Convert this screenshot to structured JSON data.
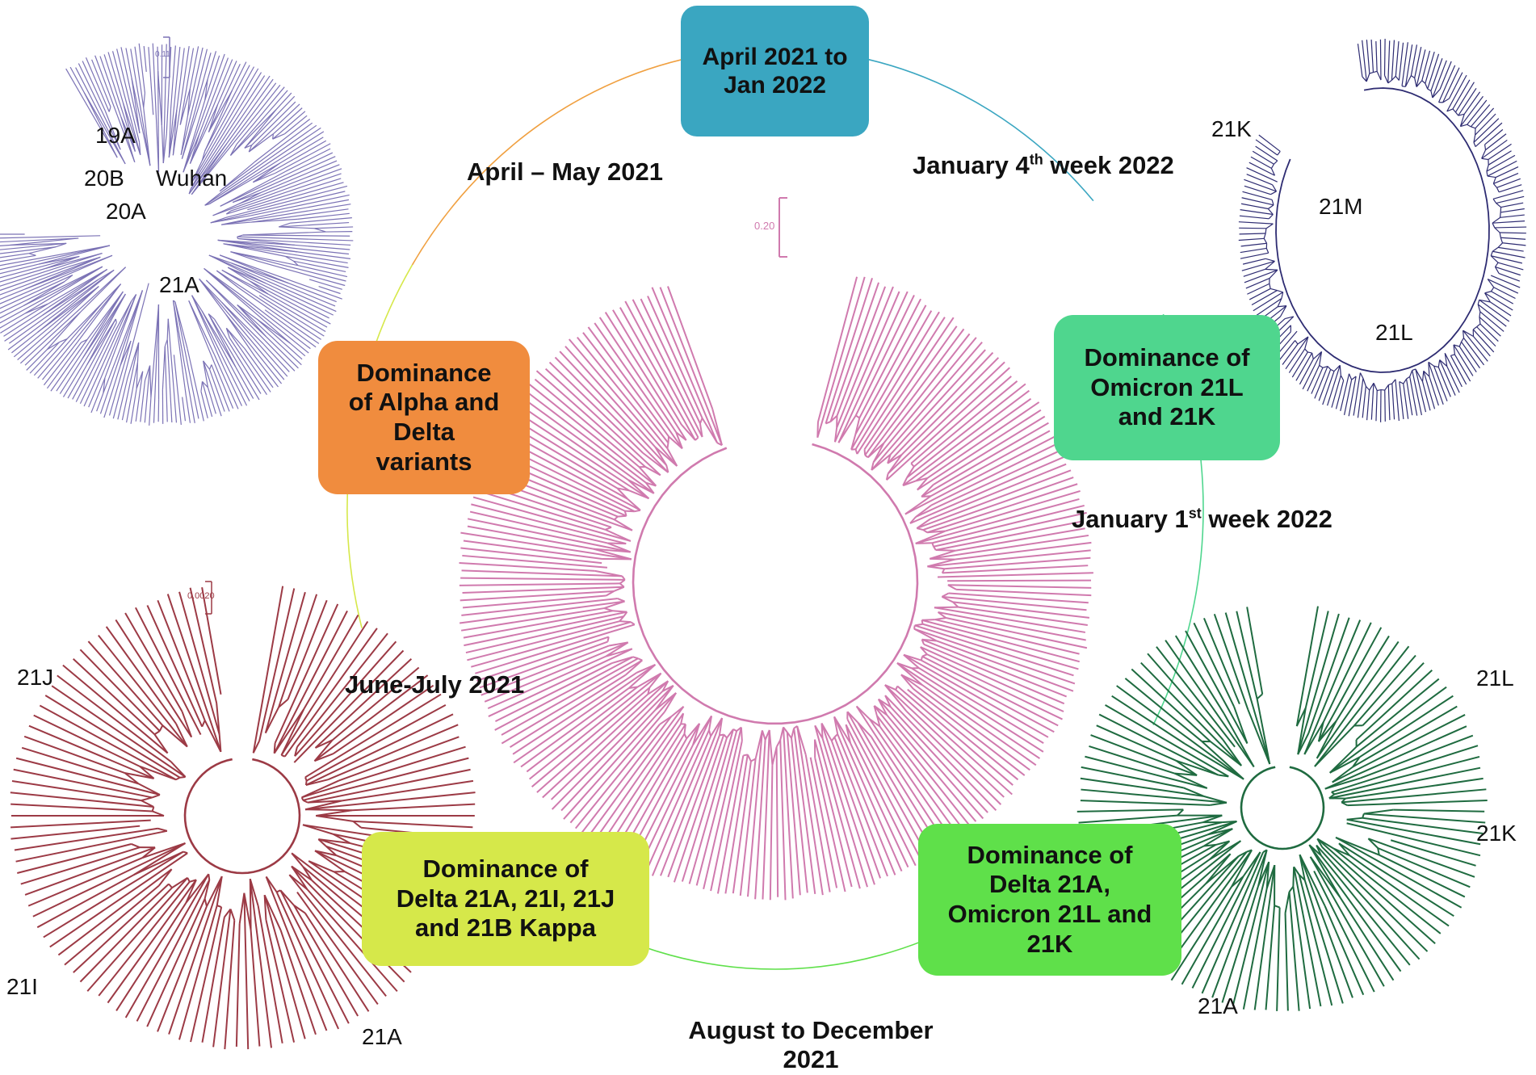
{
  "center_box": {
    "label": "April  2021 to\nJan 2022",
    "color": "#3aa6c1"
  },
  "stage_boxes": [
    {
      "id": "alpha-delta",
      "label": "Dominance\nof Alpha and\nDelta\nvariants",
      "color": "#f08c3e"
    },
    {
      "id": "omicron-21l-21k",
      "label": "Dominance of\nOmicron 21L\nand 21K",
      "color": "#4fd68e"
    },
    {
      "id": "delta-21a-21i-21j-kappa",
      "label": "Dominance of\nDelta 21A,  21I, 21J\nand 21B Kappa",
      "color": "#d6e84a"
    },
    {
      "id": "delta-omicron",
      "label": "Dominance of\nDelta 21A,\nOmicron 21L and\n21K",
      "color": "#5fe04a"
    }
  ],
  "periods": {
    "april_may": "April – May 2021",
    "jan4_prefix": "January 4",
    "jan4_sup": "th",
    "jan4_suffix": " week  2022",
    "jan1_prefix": "January 1",
    "jan1_sup": "st",
    "jan1_suffix": " week  2022",
    "june_july": "June-July 2021",
    "aug_dec": "August  to December\n2021"
  },
  "trees": {
    "top_left": {
      "color": "#7b72b5",
      "scale": "0.11",
      "clades": [
        "19A",
        "20B",
        "Wuhan",
        "20A",
        "21A"
      ]
    },
    "top_right": {
      "color": "#2e2c72",
      "clades": [
        "21K",
        "21M",
        "21L"
      ]
    },
    "center": {
      "color": "#d07aae",
      "scale": "0.20"
    },
    "bottom_left": {
      "color": "#9c3a45",
      "scale": "0.0020",
      "clades": [
        "21J",
        "21I",
        "21A"
      ]
    },
    "bottom_right": {
      "color": "#1f6b40",
      "clades": [
        "21L",
        "21K",
        "21A"
      ]
    }
  },
  "arc_colors": {
    "top_left_arc": "#f0a040",
    "top_right_arc": "#3aa6c1",
    "left_arc": "#d6e84a",
    "right_arc": "#4fd68e",
    "bottom_arc": "#5fe04a"
  }
}
